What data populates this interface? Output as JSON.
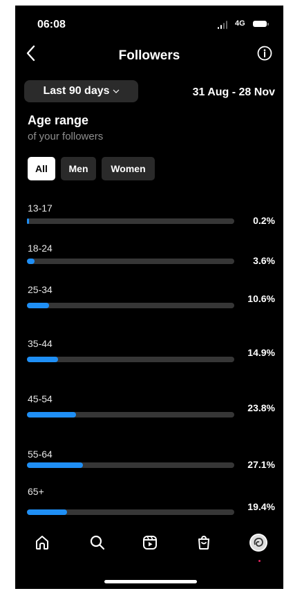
{
  "status_bar": {
    "time": "06:08",
    "network": "4G"
  },
  "header": {
    "title": "Followers"
  },
  "period": {
    "label": "Last 90 days",
    "range": "31 Aug - 28 Nov"
  },
  "section": {
    "title": "Age range",
    "subtitle": "of your followers"
  },
  "filters": [
    {
      "label": "All",
      "active": true
    },
    {
      "label": "Men",
      "active": false
    },
    {
      "label": "Women",
      "active": false
    }
  ],
  "age_ranges": [
    {
      "label": "13-17",
      "percent_text": "0.2%",
      "percent": 0.2
    },
    {
      "label": "18-24",
      "percent_text": "3.6%",
      "percent": 3.6
    },
    {
      "label": "25-34",
      "percent_text": "10.6%",
      "percent": 10.6
    },
    {
      "label": "35-44",
      "percent_text": "14.9%",
      "percent": 14.9
    },
    {
      "label": "45-54",
      "percent_text": "23.8%",
      "percent": 23.8
    },
    {
      "label": "55-64",
      "percent_text": "27.1%",
      "percent": 27.1
    },
    {
      "label": "65+",
      "percent_text": "19.4%",
      "percent": 19.4
    }
  ],
  "tab_bar": [
    "home-icon",
    "search-icon",
    "reels-icon",
    "shop-icon",
    "profile-avatar"
  ],
  "colors": {
    "background": "#000000",
    "bar_fill": "#1f8ff5",
    "bar_track": "#363636",
    "chip_active": "#ffffff",
    "chip_inactive": "#2a2a2a"
  }
}
